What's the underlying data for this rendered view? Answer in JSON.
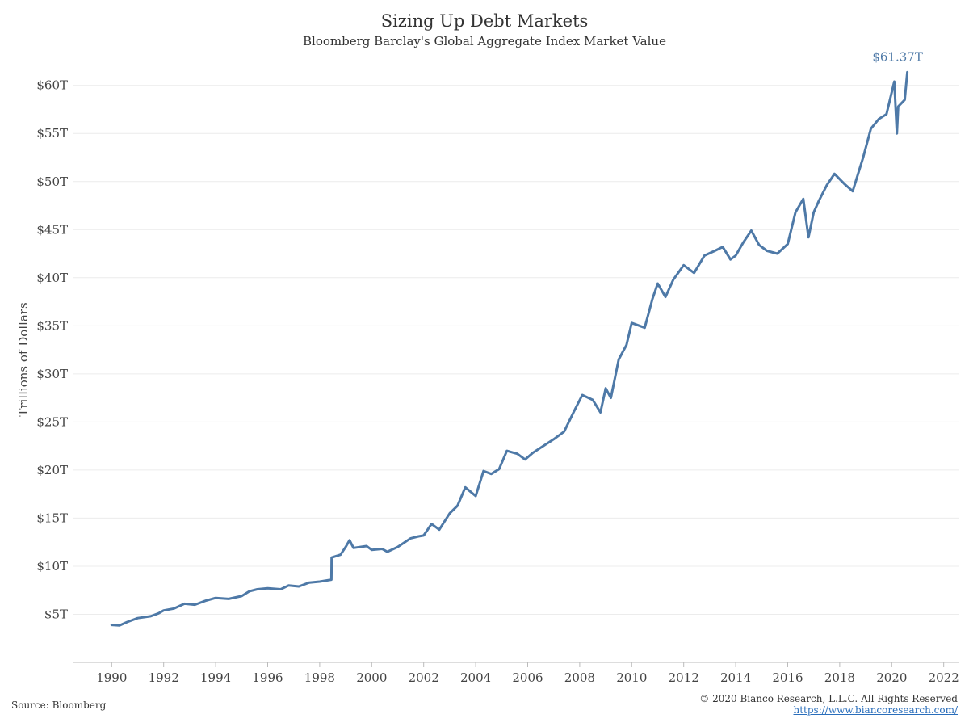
{
  "chart_data": {
    "type": "line",
    "title": "Sizing Up Debt Markets",
    "subtitle": "Bloomberg Barclay's Global Aggregate Index Market Value",
    "ylabel": "Trillions of Dollars",
    "xlabel": "",
    "ylim": [
      0,
      63
    ],
    "xlim": [
      1988.5,
      2022.6
    ],
    "y_ticks": [
      5,
      10,
      15,
      20,
      25,
      30,
      35,
      40,
      45,
      50,
      55,
      60
    ],
    "y_tick_labels": [
      "$5T",
      "$10T",
      "$15T",
      "$20T",
      "$25T",
      "$30T",
      "$35T",
      "$40T",
      "$45T",
      "$50T",
      "$55T",
      "$60T"
    ],
    "x_ticks": [
      1990,
      1992,
      1994,
      1996,
      1998,
      2000,
      2002,
      2004,
      2006,
      2008,
      2010,
      2012,
      2014,
      2016,
      2018,
      2020,
      2022
    ],
    "x_tick_labels": [
      "1990",
      "1992",
      "1994",
      "1996",
      "1998",
      "2000",
      "2002",
      "2004",
      "2006",
      "2008",
      "2010",
      "2012",
      "2014",
      "2016",
      "2018",
      "2020",
      "2022"
    ],
    "grid": true,
    "end_label": "$61.37T",
    "series": [
      {
        "color": "#4e79a7",
        "x": [
          1990.0,
          1990.3,
          1990.6,
          1991.0,
          1991.5,
          1991.8,
          1992.0,
          1992.4,
          1992.8,
          1993.2,
          1993.6,
          1994.0,
          1994.5,
          1995.0,
          1995.3,
          1995.6,
          1996.0,
          1996.5,
          1996.8,
          1997.2,
          1997.6,
          1998.0,
          1998.45,
          1998.46,
          1998.8,
          1999.0,
          1999.15,
          1999.3,
          1999.8,
          2000.0,
          2000.4,
          2000.6,
          2001.0,
          2001.5,
          2001.8,
          2002.0,
          2002.3,
          2002.6,
          2003.0,
          2003.3,
          2003.6,
          2004.0,
          2004.3,
          2004.6,
          2004.9,
          2005.2,
          2005.6,
          2005.9,
          2006.2,
          2006.6,
          2007.0,
          2007.4,
          2007.8,
          2008.1,
          2008.5,
          2008.8,
          2009.0,
          2009.2,
          2009.5,
          2009.8,
          2010.0,
          2010.3,
          2010.5,
          2010.8,
          2011.0,
          2011.3,
          2011.6,
          2012.0,
          2012.4,
          2012.8,
          2013.2,
          2013.5,
          2013.8,
          2014.0,
          2014.3,
          2014.6,
          2014.9,
          2015.2,
          2015.6,
          2016.0,
          2016.3,
          2016.6,
          2016.8,
          2017.0,
          2017.2,
          2017.5,
          2017.8,
          2018.2,
          2018.5,
          2018.9,
          2019.2,
          2019.5,
          2019.8,
          2020.1,
          2020.2,
          2020.25,
          2020.5,
          2020.6
        ],
        "values": [
          3.9,
          3.85,
          4.2,
          4.6,
          4.8,
          5.1,
          5.4,
          5.6,
          6.1,
          6.0,
          6.4,
          6.7,
          6.6,
          6.9,
          7.4,
          7.6,
          7.7,
          7.6,
          8.0,
          7.9,
          8.3,
          8.4,
          8.6,
          10.9,
          11.2,
          12.0,
          12.7,
          11.9,
          12.1,
          11.7,
          11.8,
          11.5,
          12.0,
          12.9,
          13.1,
          13.2,
          14.4,
          13.8,
          15.5,
          16.3,
          18.2,
          17.3,
          19.9,
          19.6,
          20.1,
          22.0,
          21.7,
          21.1,
          21.8,
          22.5,
          23.2,
          24.0,
          26.2,
          27.8,
          27.3,
          26.0,
          28.5,
          27.5,
          31.5,
          33.0,
          35.3,
          35.0,
          34.8,
          37.8,
          39.4,
          38.0,
          39.8,
          41.3,
          40.5,
          42.3,
          42.8,
          43.2,
          41.9,
          42.3,
          43.7,
          44.9,
          43.4,
          42.8,
          42.5,
          43.5,
          46.8,
          48.2,
          44.2,
          46.8,
          48.0,
          49.6,
          50.8,
          49.7,
          49.0,
          52.5,
          55.5,
          56.5,
          57.0,
          60.4,
          55.0,
          57.8,
          58.5,
          61.37
        ]
      }
    ]
  },
  "footer": {
    "source": "Source: Bloomberg",
    "copyright": "© 2020 Bianco Research, L.L.C. All Rights Reserved",
    "link": "https://www.biancoresearch.com/"
  }
}
